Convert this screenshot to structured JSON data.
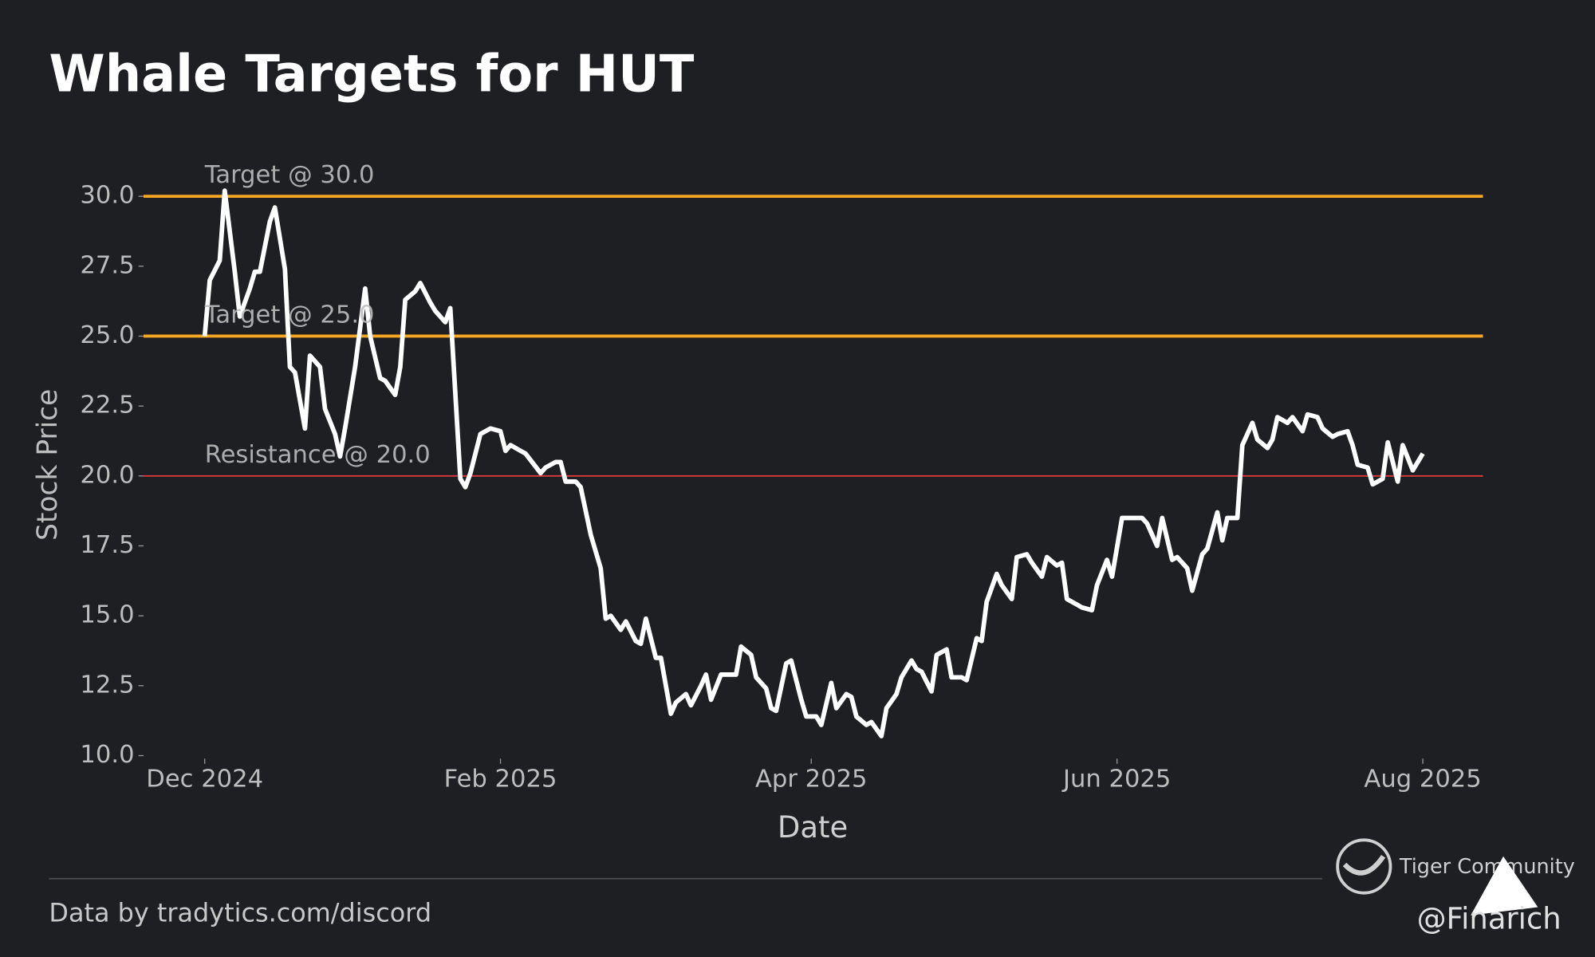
{
  "chart_data": {
    "type": "line",
    "title": "Whale Targets for HUT",
    "x_label": "Date",
    "y_label": "Stock Price",
    "xlim": [
      -12.2,
      255
    ],
    "xticks": [
      {
        "value": 0,
        "label": "Dec 2024"
      },
      {
        "value": 59,
        "label": "Feb 2025"
      },
      {
        "value": 121,
        "label": "Apr 2025"
      },
      {
        "value": 182,
        "label": "Jun 2025"
      },
      {
        "value": 243,
        "label": "Aug 2025"
      }
    ],
    "ylim": [
      9.6,
      31.0
    ],
    "yticks": [
      {
        "value": 10,
        "label": "10.0"
      },
      {
        "value": 12.5,
        "label": "12.5"
      },
      {
        "value": 15,
        "label": "15.0"
      },
      {
        "value": 17.5,
        "label": "17.5"
      },
      {
        "value": 20,
        "label": "20.0"
      },
      {
        "value": 22.5,
        "label": "22.5"
      },
      {
        "value": 25,
        "label": "25.0"
      },
      {
        "value": 27.5,
        "label": "27.5"
      },
      {
        "value": 30,
        "label": "30.0"
      }
    ],
    "hlines": [
      {
        "value": 30,
        "label": "Target @ 30.0",
        "color": "#f5a623"
      },
      {
        "value": 25,
        "label": "Target @ 25.0",
        "color": "#f5a623"
      },
      {
        "value": 20,
        "label": "Resistance @ 20.0",
        "color": "#e0393e"
      }
    ],
    "series": [
      {
        "color": "#ffffff",
        "x": [
          0,
          1,
          3,
          4,
          6,
          7,
          9,
          10,
          11,
          13,
          14,
          16,
          17,
          18,
          20,
          21,
          23,
          24,
          26,
          27,
          28,
          30,
          32,
          33,
          35,
          36,
          38,
          39,
          40,
          42,
          43,
          45,
          46,
          48,
          49,
          51,
          52,
          53,
          55,
          57,
          59,
          60,
          61,
          63,
          64,
          67,
          68,
          70,
          71,
          72,
          74,
          75,
          77,
          79,
          80,
          81,
          83,
          84,
          86,
          87,
          88,
          90,
          91,
          93,
          94,
          96,
          97,
          99,
          100,
          101,
          103,
          104,
          106,
          107,
          109,
          110,
          112,
          113,
          114,
          116,
          117,
          119,
          120,
          122,
          123,
          125,
          126,
          128,
          129,
          130,
          132,
          133,
          135,
          136,
          138,
          139,
          141,
          142,
          143,
          145,
          146,
          148,
          149,
          151,
          152,
          154,
          155,
          156,
          158,
          159,
          161,
          162,
          164,
          165,
          167,
          168,
          170,
          171,
          172,
          174,
          175,
          177,
          178,
          180,
          181,
          183,
          184,
          185,
          187,
          188,
          190,
          191,
          193,
          194,
          196,
          197,
          199,
          200,
          202,
          203,
          204,
          206,
          207,
          209,
          210,
          212,
          213,
          214,
          216,
          217,
          219,
          220,
          222,
          223,
          225,
          226,
          228,
          229,
          230,
          232,
          233,
          235,
          236,
          238,
          239,
          241,
          242,
          243
        ],
        "values": [
          25.0,
          27.0,
          27.7,
          30.2,
          27.3,
          25.7,
          26.7,
          27.3,
          27.3,
          29.1,
          29.6,
          27.4,
          23.9,
          23.7,
          21.7,
          24.3,
          23.9,
          22.4,
          21.5,
          20.7,
          21.7,
          23.9,
          26.7,
          25.0,
          23.5,
          23.4,
          22.9,
          23.9,
          26.3,
          26.6,
          26.9,
          26.2,
          25.9,
          25.5,
          26.0,
          19.9,
          19.6,
          20.1,
          21.5,
          21.7,
          21.6,
          20.9,
          21.1,
          20.9,
          20.8,
          20.1,
          20.3,
          20.5,
          20.5,
          19.8,
          19.8,
          19.6,
          17.9,
          16.7,
          14.9,
          15.0,
          14.5,
          14.8,
          14.1,
          14.0,
          14.9,
          13.5,
          13.5,
          11.5,
          11.9,
          12.2,
          11.8,
          12.5,
          12.9,
          12.0,
          12.9,
          12.9,
          12.9,
          13.9,
          13.6,
          12.8,
          12.4,
          11.7,
          11.6,
          13.3,
          13.4,
          12.0,
          11.4,
          11.4,
          11.1,
          12.6,
          11.7,
          12.2,
          12.1,
          11.4,
          11.1,
          11.2,
          10.7,
          11.7,
          12.2,
          12.8,
          13.4,
          13.1,
          13.0,
          12.3,
          13.6,
          13.8,
          12.8,
          12.8,
          12.7,
          14.2,
          14.1,
          15.5,
          16.5,
          16.1,
          15.6,
          17.1,
          17.2,
          16.9,
          16.4,
          17.1,
          16.8,
          16.9,
          15.6,
          15.4,
          15.3,
          15.2,
          16.1,
          17.0,
          16.4,
          18.5,
          18.5,
          18.5,
          18.5,
          18.3,
          17.5,
          18.5,
          17.0,
          17.1,
          16.7,
          15.9,
          17.2,
          17.4,
          18.7,
          17.7,
          18.5,
          18.5,
          21.1,
          21.9,
          21.3,
          21.0,
          21.3,
          22.1,
          21.9,
          22.1,
          21.6,
          22.2,
          22.1,
          21.7,
          21.4,
          21.5,
          21.6,
          21.1,
          20.4,
          20.3,
          19.7,
          19.9,
          21.2,
          19.8,
          21.1,
          20.2,
          20.5,
          20.8
        ]
      }
    ]
  },
  "footer": {
    "source": "Data by tradytics.com/discord",
    "brand": "Tiger Community",
    "handle": "@Finarich"
  }
}
